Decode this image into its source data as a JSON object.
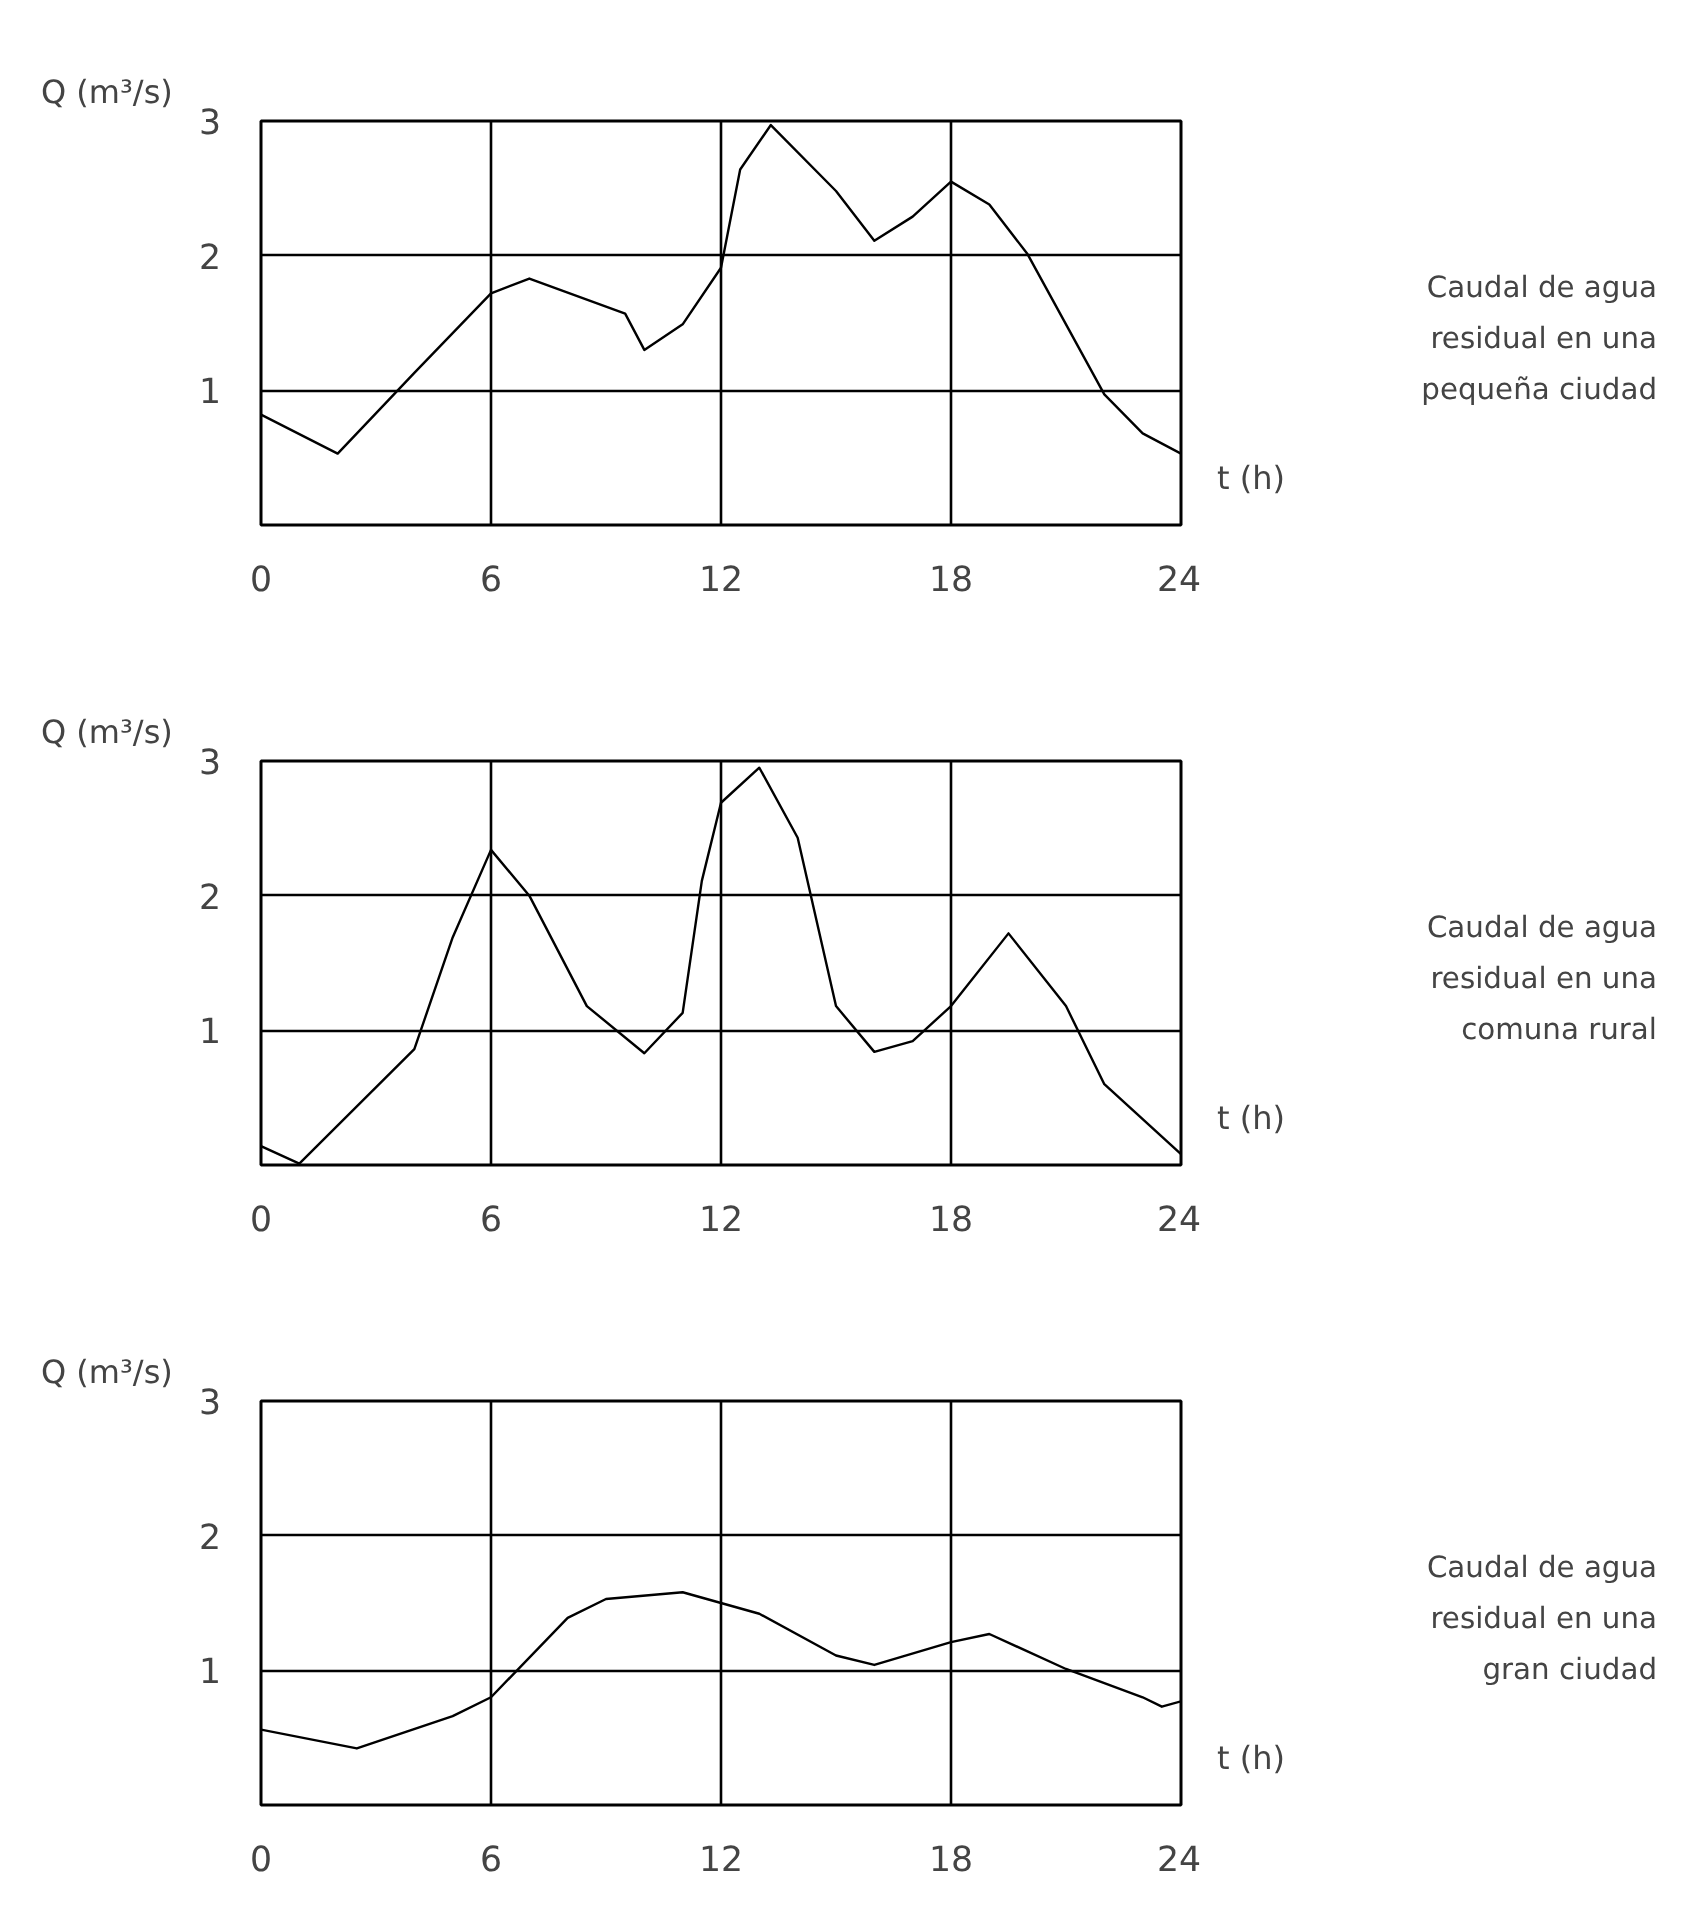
{
  "chart_data": [
    {
      "type": "line",
      "ylabel": "Q (m³/s)",
      "xlabel": "t (h)",
      "xlim": [
        0,
        24
      ],
      "ylim": [
        0,
        3
      ],
      "xticks": [
        0,
        6,
        12,
        18,
        24
      ],
      "yticks": [
        1,
        2,
        3
      ],
      "grid": true,
      "color": "#000000",
      "x": [
        0,
        2,
        4,
        6,
        7,
        9.5,
        10,
        11,
        12,
        12.5,
        13.3,
        15,
        16,
        17,
        18,
        19,
        20,
        22,
        23,
        24
      ],
      "values": [
        0.82,
        0.53,
        1.13,
        1.72,
        1.83,
        1.57,
        1.3,
        1.49,
        1.91,
        2.64,
        2.97,
        2.48,
        2.11,
        2.29,
        2.55,
        2.38,
        2.01,
        0.97,
        0.68,
        0.53
      ],
      "annotations": [
        "Caudal de agua residual en una pequeña ciudad"
      ]
    },
    {
      "type": "line",
      "ylabel": "Q (m³/s)",
      "xlabel": "t (h)",
      "xlim": [
        0,
        24
      ],
      "ylim": [
        0,
        3
      ],
      "xticks": [
        0,
        6,
        12,
        18,
        24
      ],
      "yticks": [
        1,
        2,
        3
      ],
      "grid": true,
      "color": "#000000",
      "x": [
        0,
        1,
        4,
        5,
        6,
        7,
        8.5,
        10,
        11,
        11.5,
        12,
        13,
        14,
        15,
        16,
        17,
        18,
        19.5,
        21,
        22,
        24
      ],
      "values": [
        0.14,
        0.01,
        0.86,
        1.69,
        2.34,
        2.0,
        1.18,
        0.83,
        1.13,
        2.11,
        2.69,
        2.95,
        2.43,
        1.18,
        0.84,
        0.92,
        1.18,
        1.72,
        1.18,
        0.6,
        0.08
      ],
      "annotations": [
        "Caudal de agua residual en una comuna rural"
      ]
    },
    {
      "type": "line",
      "ylabel": "Q (m³/s)",
      "xlabel": "t (h)",
      "xlim": [
        0,
        24
      ],
      "ylim": [
        0,
        3
      ],
      "xticks": [
        0,
        6,
        12,
        18,
        24
      ],
      "yticks": [
        1,
        2,
        3
      ],
      "grid": true,
      "color": "#000000",
      "x": [
        0,
        2.5,
        5,
        6,
        8,
        9,
        11,
        13,
        15,
        16,
        18,
        19,
        21,
        23,
        23.5,
        24
      ],
      "values": [
        0.56,
        0.42,
        0.66,
        0.8,
        1.39,
        1.53,
        1.58,
        1.42,
        1.11,
        1.04,
        1.21,
        1.27,
        1.01,
        0.8,
        0.73,
        0.77
      ],
      "annotations": [
        "Caudal de agua residual en una gran ciudad"
      ]
    }
  ]
}
